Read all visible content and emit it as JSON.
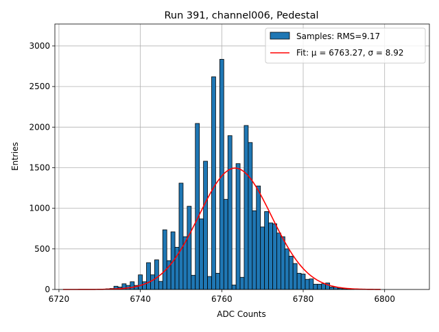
{
  "chart_data": {
    "type": "bar",
    "title": "Run 391, channel006, Pedestal",
    "xlabel": "ADC Counts",
    "ylabel": "Entries",
    "xlim": [
      6719,
      6811
    ],
    "ylim": [
      0,
      3270
    ],
    "xticks": [
      6720,
      6740,
      6760,
      6780,
      6800
    ],
    "yticks": [
      0,
      500,
      1000,
      1500,
      2000,
      2500,
      3000
    ],
    "grid": true,
    "legend_position": "top-right",
    "colors": {
      "bars": "#1f77b4",
      "bar_edge": "#000000",
      "fit": "#ff0000",
      "grid": "#b0b0b0"
    },
    "histogram": {
      "name": "Samples: RMS=9.17",
      "bin_width": 1,
      "x": [
        6731,
        6732,
        6733,
        6734,
        6735,
        6736,
        6737,
        6738,
        6739,
        6740,
        6741,
        6742,
        6743,
        6744,
        6745,
        6746,
        6747,
        6748,
        6749,
        6750,
        6751,
        6752,
        6753,
        6754,
        6755,
        6756,
        6757,
        6758,
        6759,
        6760,
        6761,
        6762,
        6763,
        6764,
        6765,
        6766,
        6767,
        6768,
        6769,
        6770,
        6771,
        6772,
        6773,
        6774,
        6775,
        6776,
        6777,
        6778,
        6779,
        6780,
        6781,
        6782,
        6783,
        6784,
        6785,
        6786,
        6787,
        6788,
        6789,
        6790,
        6791,
        6792
      ],
      "values": [
        5,
        8,
        12,
        40,
        30,
        70,
        50,
        95,
        50,
        180,
        95,
        330,
        180,
        365,
        100,
        735,
        355,
        710,
        520,
        1310,
        650,
        1025,
        175,
        2045,
        870,
        1580,
        160,
        2620,
        200,
        2835,
        1110,
        1895,
        55,
        1550,
        150,
        2020,
        1810,
        970,
        1275,
        770,
        960,
        820,
        810,
        695,
        650,
        500,
        410,
        320,
        200,
        190,
        125,
        130,
        65,
        65,
        70,
        80,
        30,
        30,
        15,
        10,
        5,
        3
      ]
    },
    "fit": {
      "name": "Fit: μ = 6763.27, σ = 8.92",
      "mu": 6763.27,
      "sigma": 8.92,
      "amplitude": 1495,
      "x_range": [
        6721,
        6799
      ]
    }
  }
}
